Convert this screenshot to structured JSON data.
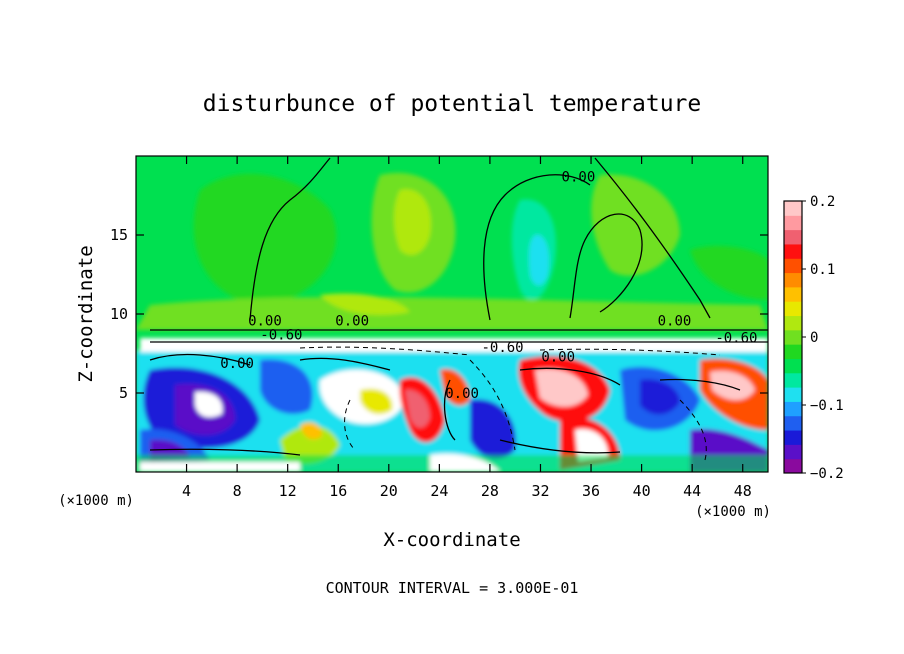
{
  "chart_data": {
    "type": "heatmap",
    "title": "disturbunce of potential temperature",
    "xlabel": "X-coordinate",
    "ylabel": "Z-coordinate",
    "x_unit_label": "(×1000 m)",
    "y_unit_label": "(×1000 m)",
    "xlim": [
      0,
      50
    ],
    "ylim": [
      0,
      20
    ],
    "x_ticks": [
      4,
      8,
      12,
      16,
      20,
      24,
      28,
      32,
      36,
      40,
      44,
      48
    ],
    "y_ticks": [
      5,
      10,
      15
    ],
    "colorbar": {
      "vmin": -0.2,
      "vmax": 0.2,
      "ticks": [
        {
          "value": 0.2,
          "label": "0.2"
        },
        {
          "value": 0.1,
          "label": "0.1"
        },
        {
          "value": 0.0,
          "label": "0"
        },
        {
          "value": -0.1,
          "label": "−0.1"
        },
        {
          "value": -0.2,
          "label": "−0.2"
        }
      ],
      "colors": [
        "#8a0a9e",
        "#5a10c8",
        "#1a1ad8",
        "#1f5ff0",
        "#1fa0ff",
        "#1fe0f0",
        "#00e8a0",
        "#00e050",
        "#20d820",
        "#70e020",
        "#b0e810",
        "#e8e800",
        "#ffc000",
        "#ff8c00",
        "#ff5000",
        "#ff1010",
        "#f06070",
        "#ff9aa0",
        "#ffc8c8"
      ]
    },
    "contour_labels": [
      {
        "text": "0.00",
        "x": 35.0,
        "z": 18.7
      },
      {
        "text": "0.00",
        "x": 10.2,
        "z": 9.6
      },
      {
        "text": "0.00",
        "x": 17.1,
        "z": 9.6
      },
      {
        "text": "0.00",
        "x": 42.6,
        "z": 9.6
      },
      {
        "text": "-0.60",
        "x": 11.5,
        "z": 8.7
      },
      {
        "text": "-0.60",
        "x": 29.0,
        "z": 7.9
      },
      {
        "text": "0.00",
        "x": 33.4,
        "z": 7.3
      },
      {
        "text": "0.00",
        "x": 8.0,
        "z": 6.9
      },
      {
        "text": "0.00",
        "x": 25.8,
        "z": 5.0
      },
      {
        "text": "-0.60",
        "x": 47.5,
        "z": 8.5
      }
    ],
    "footer": "CONTOUR INTERVAL = 3.000E-01"
  }
}
